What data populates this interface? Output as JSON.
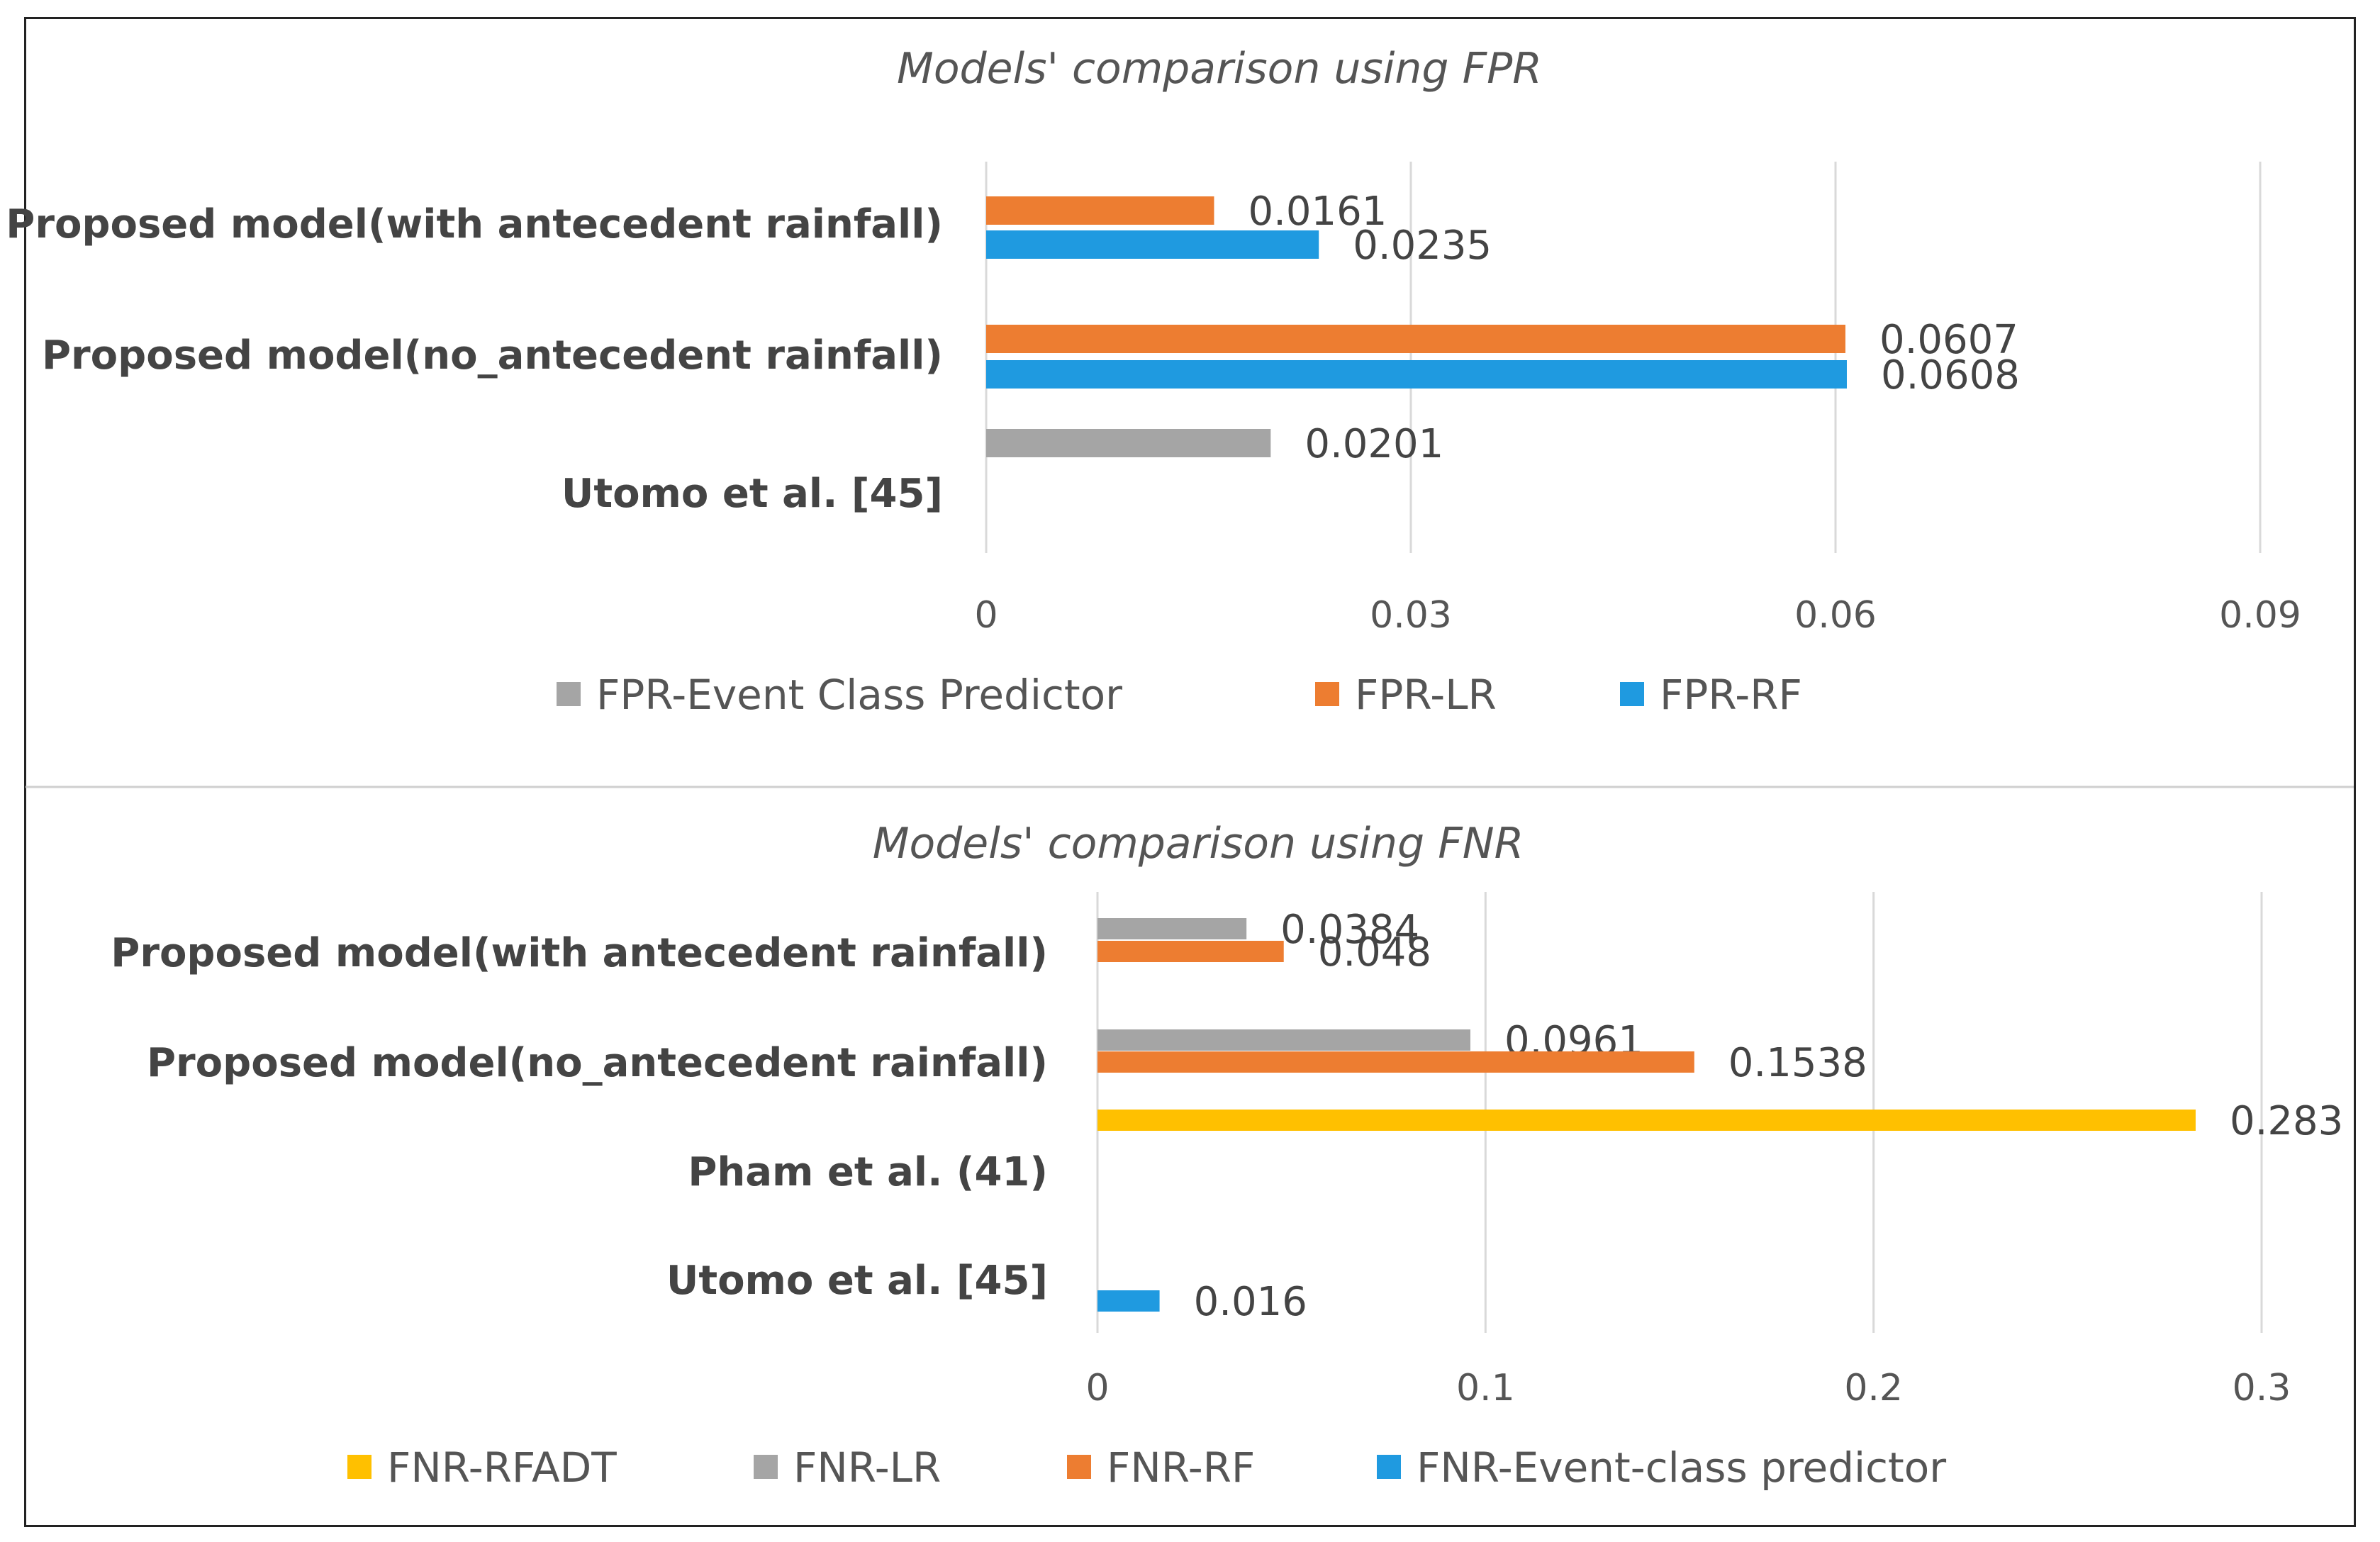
{
  "chart_data": [
    {
      "type": "bar",
      "orientation": "horizontal",
      "title": "Models' comparison using FPR",
      "categories": [
        "Proposed model(with antecedent rainfall)",
        "Proposed model(no_antecedent rainfall)",
        "Utomo et al. [45]"
      ],
      "xlim": [
        0,
        0.09
      ],
      "ticks": [
        "0",
        "0.03",
        "0.06",
        "0.09"
      ],
      "legend_position": "bottom",
      "series": [
        {
          "name": "FPR-Event Class Predictor",
          "color": "#a5a5a5",
          "values": [
            null,
            null,
            0.0201
          ],
          "labels": [
            "",
            "",
            "0.0201"
          ]
        },
        {
          "name": "FPR-LR",
          "color": "#ed7d31",
          "values": [
            0.0161,
            0.0607,
            null
          ],
          "labels": [
            "0.0161",
            "0.0607",
            ""
          ]
        },
        {
          "name": "FPR-RF",
          "color": "#1f9ae0",
          "values": [
            0.0235,
            0.0608,
            null
          ],
          "labels": [
            "0.0235",
            "0.0608",
            ""
          ]
        }
      ]
    },
    {
      "type": "bar",
      "orientation": "horizontal",
      "title": "Models' comparison using FNR",
      "categories": [
        "Proposed model(with antecedent rainfall)",
        "Proposed model(no_antecedent rainfall)",
        "Pham et al. (41)",
        "Utomo et al. [45]"
      ],
      "xlim": [
        0,
        0.3
      ],
      "ticks": [
        "0",
        "0.1",
        "0.2",
        "0.3"
      ],
      "legend_position": "bottom",
      "series": [
        {
          "name": "FNR-RFADT",
          "color": "#ffc000",
          "values": [
            null,
            null,
            0.283,
            null
          ],
          "labels": [
            "",
            "",
            "0.283",
            ""
          ]
        },
        {
          "name": "FNR-LR",
          "color": "#a5a5a5",
          "values": [
            0.0384,
            0.0961,
            null,
            null
          ],
          "labels": [
            "0.0384",
            "0.0961",
            "",
            ""
          ]
        },
        {
          "name": "FNR-RF",
          "color": "#ed7d31",
          "values": [
            0.048,
            0.1538,
            null,
            null
          ],
          "labels": [
            "0.048",
            "0.1538",
            "",
            ""
          ]
        },
        {
          "name": "FNR-Event-class predictor",
          "color": "#1f9ae0",
          "values": [
            null,
            null,
            null,
            0.016
          ],
          "labels": [
            "",
            "",
            "",
            "0.016"
          ]
        }
      ]
    }
  ]
}
